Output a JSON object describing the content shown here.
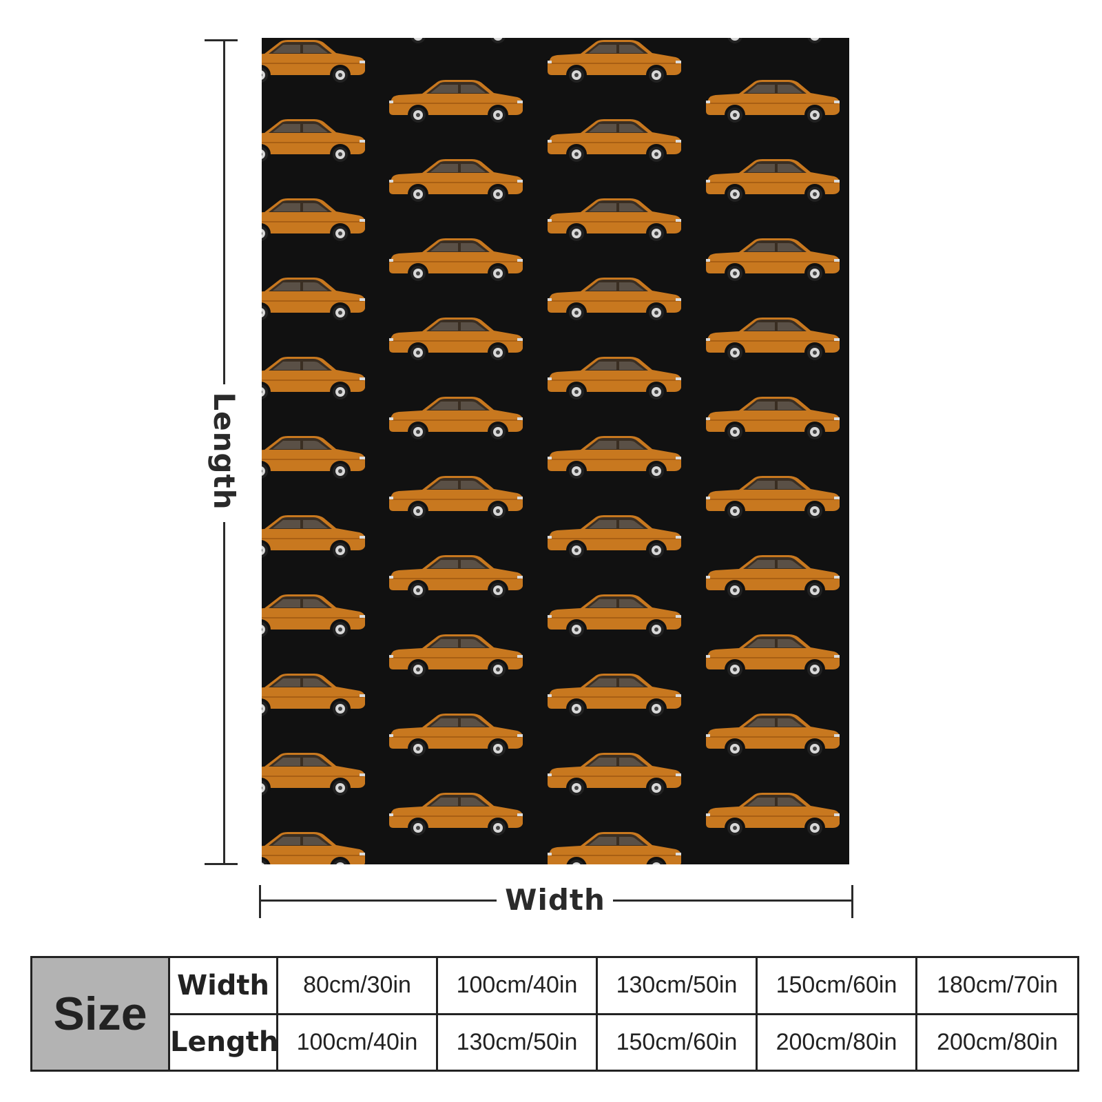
{
  "product_image": {
    "pattern_description_icon": "orange-car-icon",
    "background_color": "#111111",
    "car_color": "#c8781f"
  },
  "dimensions": {
    "length_label": "Length",
    "width_label": "Width"
  },
  "size_table": {
    "header": "Size",
    "width_label": "Width",
    "length_label": "Length",
    "widths": [
      "80cm/30in",
      "100cm/40in",
      "130cm/50in",
      "150cm/60in",
      "180cm/70in"
    ],
    "lengths": [
      "100cm/40in",
      "130cm/50in",
      "150cm/60in",
      "200cm/80in",
      "200cm/80in"
    ]
  }
}
